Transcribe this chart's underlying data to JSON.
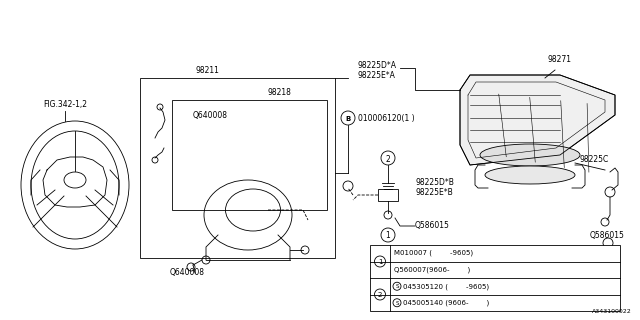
{
  "bg_color": "#ffffff",
  "diagram_id": "A343100022",
  "labels": {
    "fig_ref": "FIG.342-1,2",
    "part_98211": "98211",
    "part_98218": "98218",
    "part_98271": "98271",
    "part_98225DA": "98225D*A",
    "part_98225EA": "98225E*A",
    "part_98225DB": "98225D*B",
    "part_98225EB": "98225E*B",
    "part_98225C": "98225C",
    "part_Q640008a": "Q640008",
    "part_Q640008b": "Q640008",
    "part_Q586015a": "Q586015",
    "part_Q586015b": "Q586015",
    "part_B": "B",
    "part_010006120": "010006120(1 )",
    "table_row1a": "M010007 (        -9605)",
    "table_row1b": "Q560007(9606-        )",
    "table_row2a": "S045305120 (        -9605)",
    "table_row2b": "S045005140 (9606-        )"
  }
}
